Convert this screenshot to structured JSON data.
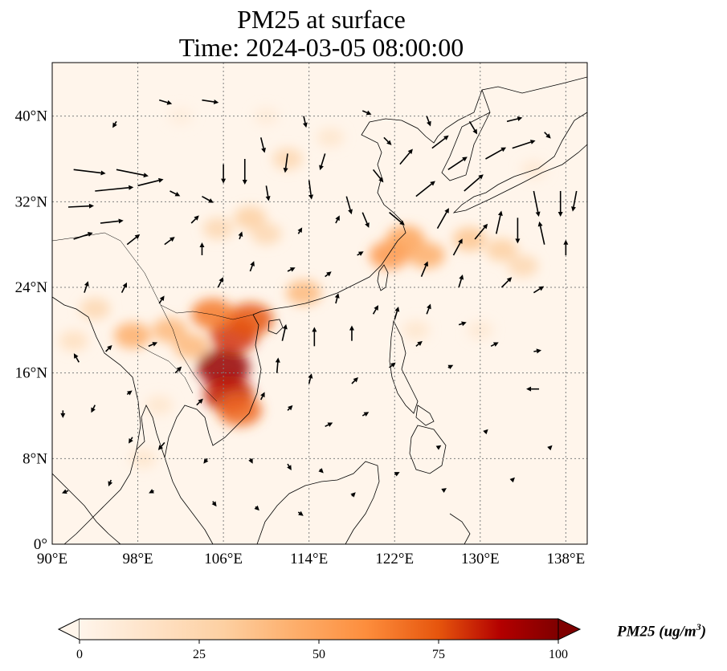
{
  "title": {
    "line1": "PM25 at surface",
    "line2": "Time: 2024-03-05 08:00:00"
  },
  "map": {
    "projection": "PlateCarree",
    "lon_range": [
      90,
      140
    ],
    "lat_range": [
      0,
      45
    ],
    "lon_ticks": [
      {
        "value": 90,
        "label": "90°E"
      },
      {
        "value": 98,
        "label": "98°E"
      },
      {
        "value": 106,
        "label": "106°E"
      },
      {
        "value": 114,
        "label": "114°E"
      },
      {
        "value": 122,
        "label": "122°E"
      },
      {
        "value": 130,
        "label": "130°E"
      },
      {
        "value": 138,
        "label": "138°E"
      }
    ],
    "lat_ticks": [
      {
        "value": 0,
        "label": "0°"
      },
      {
        "value": 8,
        "label": "8°N"
      },
      {
        "value": 16,
        "label": "16°N"
      },
      {
        "value": 24,
        "label": "24°N"
      },
      {
        "value": 32,
        "label": "32°N"
      },
      {
        "value": 40,
        "label": "40°N"
      }
    ],
    "gridlines": "dotted",
    "field": "PM25 concentration",
    "hotspots": [
      {
        "lon": 106.0,
        "lat": 16.5,
        "value": 95
      },
      {
        "lon": 106.5,
        "lat": 14.0,
        "value": 85
      },
      {
        "lon": 107.0,
        "lat": 19.5,
        "value": 80
      },
      {
        "lon": 108.5,
        "lat": 21.0,
        "value": 75
      },
      {
        "lon": 107.5,
        "lat": 12.5,
        "value": 70
      },
      {
        "lon": 105.0,
        "lat": 21.5,
        "value": 65
      },
      {
        "lon": 97.5,
        "lat": 19.5,
        "value": 45
      },
      {
        "lon": 101.0,
        "lat": 20.0,
        "value": 40
      },
      {
        "lon": 103.0,
        "lat": 18.5,
        "value": 40
      },
      {
        "lon": 113.5,
        "lat": 23.5,
        "value": 40
      },
      {
        "lon": 121.5,
        "lat": 27.0,
        "value": 55
      },
      {
        "lon": 123.0,
        "lat": 28.5,
        "value": 50
      },
      {
        "lon": 125.0,
        "lat": 27.0,
        "value": 45
      },
      {
        "lon": 129.0,
        "lat": 28.5,
        "value": 35
      },
      {
        "lon": 132.0,
        "lat": 27.5,
        "value": 30
      },
      {
        "lon": 134.0,
        "lat": 26.0,
        "value": 25
      },
      {
        "lon": 108.5,
        "lat": 30.5,
        "value": 30
      },
      {
        "lon": 110.0,
        "lat": 29.0,
        "value": 25
      },
      {
        "lon": 105.5,
        "lat": 29.5,
        "value": 25
      },
      {
        "lon": 112.0,
        "lat": 36.0,
        "value": 25
      },
      {
        "lon": 116.0,
        "lat": 38.0,
        "value": 15
      },
      {
        "lon": 94.0,
        "lat": 22.0,
        "value": 25
      },
      {
        "lon": 92.0,
        "lat": 19.0,
        "value": 20
      },
      {
        "lon": 100.0,
        "lat": 13.0,
        "value": 15
      },
      {
        "lon": 98.5,
        "lat": 8.0,
        "value": 15
      },
      {
        "lon": 124.0,
        "lat": 20.0,
        "value": 15
      },
      {
        "lon": 130.0,
        "lat": 20.0,
        "value": 12
      },
      {
        "lon": 135.0,
        "lat": 35.0,
        "value": 12
      },
      {
        "lon": 110.0,
        "lat": 40.0,
        "value": 10
      },
      {
        "lon": 102.0,
        "lat": 40.0,
        "value": 8
      }
    ],
    "wind_vectors": [
      {
        "lon": 92.0,
        "lat": 35.0,
        "u": 2.5,
        "v": -0.3
      },
      {
        "lon": 94.0,
        "lat": 33.0,
        "u": 3.0,
        "v": 0.3
      },
      {
        "lon": 96.0,
        "lat": 35.0,
        "u": 2.5,
        "v": -0.5
      },
      {
        "lon": 98.0,
        "lat": 33.5,
        "u": 2.0,
        "v": 0.5
      },
      {
        "lon": 91.5,
        "lat": 31.5,
        "u": 2.0,
        "v": 0.1
      },
      {
        "lon": 94.5,
        "lat": 30.0,
        "u": 1.8,
        "v": 0.2
      },
      {
        "lon": 92.0,
        "lat": 28.5,
        "u": 1.5,
        "v": 0.5
      },
      {
        "lon": 97.0,
        "lat": 28.0,
        "u": 1.0,
        "v": 0.8
      },
      {
        "lon": 100.5,
        "lat": 28.0,
        "u": 0.8,
        "v": 0.6
      },
      {
        "lon": 103.0,
        "lat": 30.0,
        "u": 0.6,
        "v": 0.6
      },
      {
        "lon": 101.0,
        "lat": 33.0,
        "u": 0.8,
        "v": -0.4
      },
      {
        "lon": 104.0,
        "lat": 32.5,
        "u": 0.9,
        "v": -0.5
      },
      {
        "lon": 106.0,
        "lat": 35.5,
        "u": 0.0,
        "v": -1.5
      },
      {
        "lon": 108.0,
        "lat": 36.0,
        "u": 0.0,
        "v": -2.0
      },
      {
        "lon": 109.5,
        "lat": 38.0,
        "u": 0.3,
        "v": -1.2
      },
      {
        "lon": 112.0,
        "lat": 36.5,
        "u": -0.2,
        "v": -1.5
      },
      {
        "lon": 110.0,
        "lat": 33.5,
        "u": 0.2,
        "v": -1.2
      },
      {
        "lon": 114.0,
        "lat": 34.0,
        "u": 0.2,
        "v": -1.5
      },
      {
        "lon": 115.5,
        "lat": 36.5,
        "u": -0.4,
        "v": -1.3
      },
      {
        "lon": 117.5,
        "lat": 32.5,
        "u": 0.4,
        "v": -1.4
      },
      {
        "lon": 120.0,
        "lat": 35.0,
        "u": 0.8,
        "v": -1.0
      },
      {
        "lon": 119.0,
        "lat": 31.0,
        "u": 0.5,
        "v": -1.2
      },
      {
        "lon": 121.5,
        "lat": 31.0,
        "u": 1.2,
        "v": -1.0
      },
      {
        "lon": 124.0,
        "lat": 32.5,
        "u": 1.5,
        "v": 1.2
      },
      {
        "lon": 122.5,
        "lat": 35.5,
        "u": 1.0,
        "v": 1.2
      },
      {
        "lon": 125.5,
        "lat": 37.0,
        "u": 1.3,
        "v": 1.0
      },
      {
        "lon": 127.0,
        "lat": 35.0,
        "u": 1.5,
        "v": 1.0
      },
      {
        "lon": 128.5,
        "lat": 33.0,
        "u": 1.5,
        "v": 1.3
      },
      {
        "lon": 130.5,
        "lat": 36.0,
        "u": 1.6,
        "v": 0.9
      },
      {
        "lon": 133.0,
        "lat": 37.0,
        "u": 1.8,
        "v": 0.6
      },
      {
        "lon": 135.0,
        "lat": 33.0,
        "u": 0.4,
        "v": -2.0
      },
      {
        "lon": 137.5,
        "lat": 33.0,
        "u": 0.0,
        "v": -2.0
      },
      {
        "lon": 139.0,
        "lat": 33.0,
        "u": -0.3,
        "v": -1.6
      },
      {
        "lon": 136.0,
        "lat": 38.5,
        "u": 0.5,
        "v": -0.5
      },
      {
        "lon": 125.0,
        "lat": 40.0,
        "u": 0.3,
        "v": -0.8
      },
      {
        "lon": 129.0,
        "lat": 39.5,
        "u": 0.6,
        "v": -1.0
      },
      {
        "lon": 132.5,
        "lat": 39.5,
        "u": 1.2,
        "v": 0.3
      },
      {
        "lon": 96.0,
        "lat": 39.5,
        "u": -0.3,
        "v": -0.5
      },
      {
        "lon": 100.0,
        "lat": 41.5,
        "u": 1.0,
        "v": -0.3
      },
      {
        "lon": 104.0,
        "lat": 41.5,
        "u": 1.3,
        "v": -0.2
      },
      {
        "lon": 113.5,
        "lat": 40.0,
        "u": 0.2,
        "v": -0.9
      },
      {
        "lon": 119.0,
        "lat": 40.5,
        "u": 0.7,
        "v": -0.3
      },
      {
        "lon": 121.0,
        "lat": 38.0,
        "u": 0.6,
        "v": -0.6
      },
      {
        "lon": 126.0,
        "lat": 29.5,
        "u": 0.9,
        "v": 1.6
      },
      {
        "lon": 127.5,
        "lat": 27.0,
        "u": 0.7,
        "v": 1.3
      },
      {
        "lon": 129.5,
        "lat": 28.5,
        "u": 1.0,
        "v": 1.2
      },
      {
        "lon": 131.5,
        "lat": 29.0,
        "u": 0.4,
        "v": 1.8
      },
      {
        "lon": 133.5,
        "lat": 30.5,
        "u": 0.0,
        "v": -2.0
      },
      {
        "lon": 136.0,
        "lat": 28.0,
        "u": -0.4,
        "v": 1.8
      },
      {
        "lon": 138.0,
        "lat": 27.0,
        "u": 0.0,
        "v": 1.2
      },
      {
        "lon": 124.5,
        "lat": 25.0,
        "u": 0.5,
        "v": 1.2
      },
      {
        "lon": 128.0,
        "lat": 24.0,
        "u": 0.3,
        "v": 1.0
      },
      {
        "lon": 132.0,
        "lat": 24.0,
        "u": 0.8,
        "v": 0.8
      },
      {
        "lon": 135.0,
        "lat": 23.5,
        "u": 0.8,
        "v": 0.5
      },
      {
        "lon": 122.0,
        "lat": 21.0,
        "u": 0.3,
        "v": 1.0
      },
      {
        "lon": 125.0,
        "lat": 21.5,
        "u": 0.3,
        "v": 0.8
      },
      {
        "lon": 128.0,
        "lat": 20.5,
        "u": 0.6,
        "v": 0.2
      },
      {
        "lon": 131.0,
        "lat": 18.5,
        "u": 0.6,
        "v": 0.3
      },
      {
        "lon": 135.0,
        "lat": 18.0,
        "u": 0.6,
        "v": 0.1
      },
      {
        "lon": 135.5,
        "lat": 14.5,
        "u": -1.0,
        "v": 0.0
      },
      {
        "lon": 124.0,
        "lat": 18.5,
        "u": 0.5,
        "v": 0.4
      },
      {
        "lon": 127.0,
        "lat": 16.5,
        "u": 0.4,
        "v": 0.2
      },
      {
        "lon": 118.0,
        "lat": 19.0,
        "u": 0.0,
        "v": 1.2
      },
      {
        "lon": 114.5,
        "lat": 18.5,
        "u": 0.0,
        "v": 1.5
      },
      {
        "lon": 116.5,
        "lat": 22.5,
        "u": 0.2,
        "v": 0.8
      },
      {
        "lon": 120.0,
        "lat": 21.5,
        "u": 0.4,
        "v": 0.7
      },
      {
        "lon": 111.5,
        "lat": 19.0,
        "u": 0.3,
        "v": 1.3
      },
      {
        "lon": 111.0,
        "lat": 16.0,
        "u": 0.1,
        "v": 1.2
      },
      {
        "lon": 114.0,
        "lat": 15.0,
        "u": 0.2,
        "v": 0.8
      },
      {
        "lon": 118.0,
        "lat": 15.0,
        "u": 0.5,
        "v": 0.5
      },
      {
        "lon": 121.5,
        "lat": 16.5,
        "u": 0.5,
        "v": 0.4
      },
      {
        "lon": 109.5,
        "lat": 13.5,
        "u": 0.3,
        "v": 0.6
      },
      {
        "lon": 112.0,
        "lat": 12.5,
        "u": 0.4,
        "v": 0.4
      },
      {
        "lon": 115.5,
        "lat": 11.0,
        "u": 0.6,
        "v": 0.3
      },
      {
        "lon": 119.0,
        "lat": 12.0,
        "u": 0.5,
        "v": 0.3
      },
      {
        "lon": 112.0,
        "lat": 7.5,
        "u": 0.3,
        "v": -0.5
      },
      {
        "lon": 115.0,
        "lat": 7.0,
        "u": 0.3,
        "v": -0.3
      },
      {
        "lon": 108.5,
        "lat": 8.0,
        "u": 0.2,
        "v": -0.4
      },
      {
        "lon": 104.5,
        "lat": 8.0,
        "u": -0.3,
        "v": -0.4
      },
      {
        "lon": 100.5,
        "lat": 9.5,
        "u": -0.5,
        "v": -0.6
      },
      {
        "lon": 97.5,
        "lat": 10.0,
        "u": -0.3,
        "v": -0.5
      },
      {
        "lon": 94.0,
        "lat": 13.0,
        "u": -0.3,
        "v": -0.6
      },
      {
        "lon": 91.0,
        "lat": 12.5,
        "u": 0.0,
        "v": -0.6
      },
      {
        "lon": 92.5,
        "lat": 17.0,
        "u": -0.4,
        "v": 0.7
      },
      {
        "lon": 95.0,
        "lat": 18.0,
        "u": 0.5,
        "v": 0.5
      },
      {
        "lon": 99.0,
        "lat": 18.5,
        "u": 0.7,
        "v": 0.3
      },
      {
        "lon": 101.5,
        "lat": 16.0,
        "u": 0.5,
        "v": 0.5
      },
      {
        "lon": 103.5,
        "lat": 13.0,
        "u": 0.5,
        "v": 0.5
      },
      {
        "lon": 97.0,
        "lat": 14.0,
        "u": 0.4,
        "v": 0.3
      },
      {
        "lon": 93.0,
        "lat": 23.5,
        "u": 0.3,
        "v": 0.9
      },
      {
        "lon": 96.5,
        "lat": 23.5,
        "u": 0.4,
        "v": 0.8
      },
      {
        "lon": 100.0,
        "lat": 22.5,
        "u": 0.4,
        "v": 0.6
      },
      {
        "lon": 91.5,
        "lat": 5.0,
        "u": -0.5,
        "v": -0.2
      },
      {
        "lon": 95.5,
        "lat": 6.0,
        "u": -0.2,
        "v": -0.5
      },
      {
        "lon": 99.5,
        "lat": 5.0,
        "u": -0.4,
        "v": -0.2
      },
      {
        "lon": 105.0,
        "lat": 4.0,
        "u": 0.3,
        "v": -0.4
      },
      {
        "lon": 109.0,
        "lat": 3.5,
        "u": 0.3,
        "v": -0.3
      },
      {
        "lon": 113.0,
        "lat": 3.0,
        "u": 0.4,
        "v": -0.3
      },
      {
        "lon": 118.0,
        "lat": 4.5,
        "u": 0.3,
        "v": 0.3
      },
      {
        "lon": 122.0,
        "lat": 6.5,
        "u": 0.4,
        "v": 0.2
      },
      {
        "lon": 126.0,
        "lat": 9.0,
        "u": 0.3,
        "v": 0.2
      },
      {
        "lon": 126.5,
        "lat": 5.0,
        "u": 0.3,
        "v": 0.2
      },
      {
        "lon": 130.5,
        "lat": 10.5,
        "u": 0.2,
        "v": 0.2
      },
      {
        "lon": 133.0,
        "lat": 6.0,
        "u": 0.2,
        "v": 0.2
      },
      {
        "lon": 136.5,
        "lat": 9.0,
        "u": 0.2,
        "v": 0.2
      },
      {
        "lon": 105.5,
        "lat": 24.0,
        "u": 0.4,
        "v": 0.8
      },
      {
        "lon": 108.5,
        "lat": 25.5,
        "u": 0.3,
        "v": 0.8
      },
      {
        "lon": 112.0,
        "lat": 25.5,
        "u": 0.6,
        "v": 0.3
      },
      {
        "lon": 115.5,
        "lat": 25.0,
        "u": 0.5,
        "v": 0.4
      },
      {
        "lon": 118.5,
        "lat": 27.0,
        "u": 0.5,
        "v": 0.3
      },
      {
        "lon": 104.0,
        "lat": 27.0,
        "u": 0.0,
        "v": 1.0
      },
      {
        "lon": 107.5,
        "lat": 28.5,
        "u": 0.2,
        "v": 0.6
      },
      {
        "lon": 113.0,
        "lat": 29.0,
        "u": 0.3,
        "v": 0.5
      },
      {
        "lon": 116.5,
        "lat": 30.0,
        "u": 0.3,
        "v": 0.6
      }
    ]
  },
  "colorbar": {
    "cmap": "OrRd",
    "min": 0,
    "max": 100,
    "extend": "both",
    "ticks": [
      {
        "value": 0,
        "label": "0"
      },
      {
        "value": 25,
        "label": "25"
      },
      {
        "value": 50,
        "label": "50"
      },
      {
        "value": 75,
        "label": "75"
      },
      {
        "value": 100,
        "label": "100"
      }
    ],
    "label_text": "PM25 (ug/m",
    "label_exp": "3",
    "label_close": ")"
  },
  "colors": {
    "background_field": "#fff5eb",
    "low": "#fee6ce",
    "mid": "#fdae6b",
    "high": "#e6550d",
    "max": "#7f0000",
    "coastline": "#000000",
    "gridline": "#7f7f7f"
  }
}
